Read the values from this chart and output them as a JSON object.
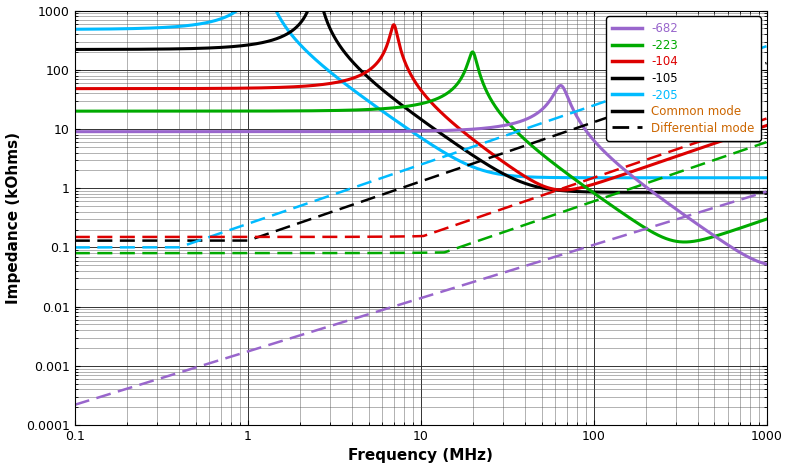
{
  "title": "",
  "xlabel": "Frequency (MHz)",
  "ylabel": "Impedance (kOhms)",
  "xlim": [
    0.1,
    1000
  ],
  "ylim": [
    0.0001,
    1000
  ],
  "colors": {
    "-682": "#9966cc",
    "-223": "#00aa00",
    "-104": "#dd0000",
    "-105": "#000000",
    "-205": "#00bbff"
  },
  "common_mode_label": "Common mode",
  "diff_mode_label": "Differential mode",
  "background_color": "#ffffff",
  "grid_major_color": "#000000",
  "grid_minor_color": "#000000"
}
